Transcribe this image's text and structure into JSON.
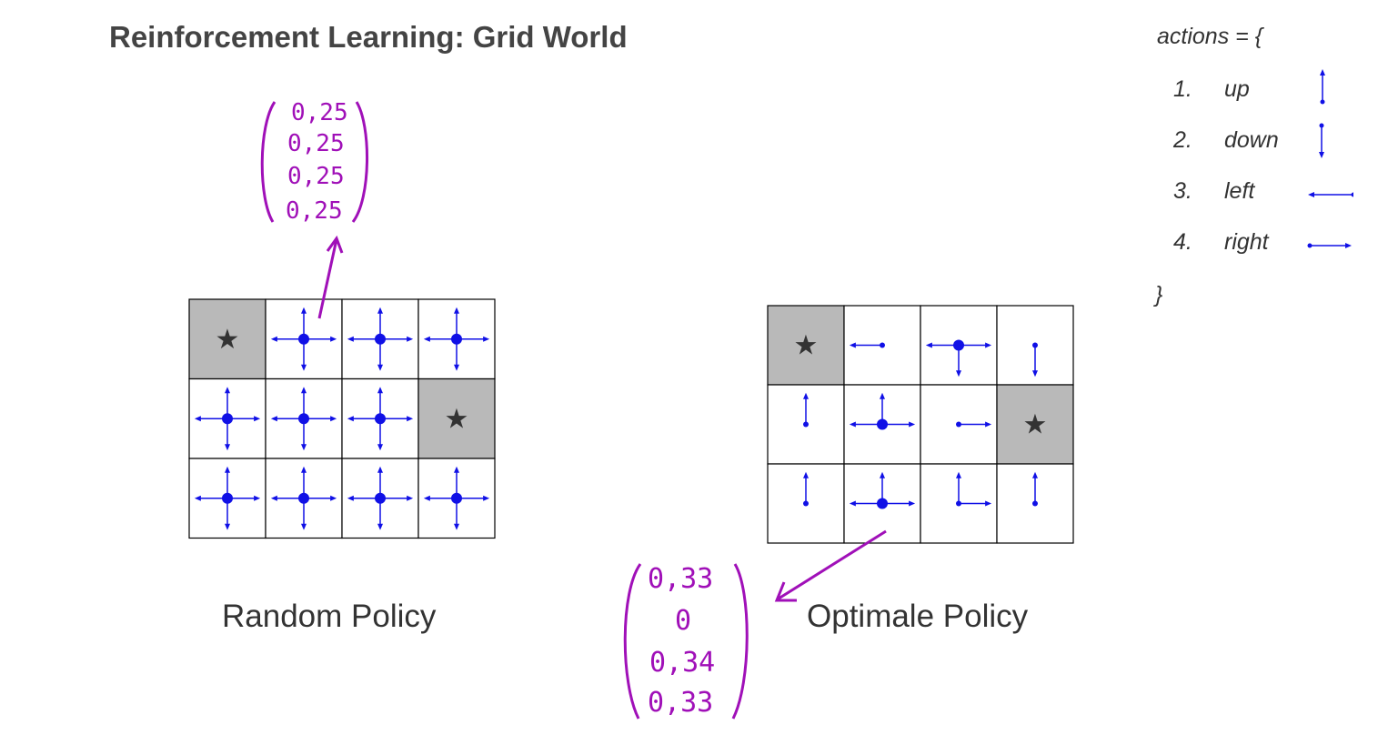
{
  "title": "Reinforcement Learning: Grid World",
  "colors": {
    "arrow": "#1010e6",
    "annotation": "#a010b8",
    "goal_cell": "#b9b9b9",
    "star": "#333333"
  },
  "legend": {
    "header": "actions = {",
    "closing": "}",
    "actions": [
      {
        "number": "1.",
        "name": "up",
        "icon": "arrow-up-icon"
      },
      {
        "number": "2.",
        "name": "down",
        "icon": "arrow-down-icon"
      },
      {
        "number": "3.",
        "name": "left",
        "icon": "arrow-left-icon"
      },
      {
        "number": "4.",
        "name": "right",
        "icon": "arrow-right-icon"
      }
    ]
  },
  "random_policy": {
    "caption": "Random Policy",
    "cells": [
      [
        {
          "goal": true,
          "symbol": "★",
          "actions": []
        },
        {
          "actions": [
            "up",
            "down",
            "left",
            "right"
          ]
        },
        {
          "actions": [
            "up",
            "down",
            "left",
            "right"
          ]
        },
        {
          "actions": [
            "up",
            "down",
            "left",
            "right"
          ]
        }
      ],
      [
        {
          "actions": [
            "up",
            "down",
            "left",
            "right"
          ]
        },
        {
          "actions": [
            "up",
            "down",
            "left",
            "right"
          ]
        },
        {
          "actions": [
            "up",
            "down",
            "left",
            "right"
          ]
        },
        {
          "goal": true,
          "symbol": "★",
          "actions": []
        }
      ],
      [
        {
          "actions": [
            "up",
            "down",
            "left",
            "right"
          ]
        },
        {
          "actions": [
            "up",
            "down",
            "left",
            "right"
          ]
        },
        {
          "actions": [
            "up",
            "down",
            "left",
            "right"
          ]
        },
        {
          "actions": [
            "up",
            "down",
            "left",
            "right"
          ]
        }
      ]
    ],
    "annotation": {
      "values": [
        "0,25",
        "0,25",
        "0,25",
        "0,25"
      ]
    }
  },
  "optimal_policy": {
    "caption": "Optimale Policy",
    "cells": [
      [
        {
          "goal": true,
          "symbol": "★",
          "actions": []
        },
        {
          "actions": [
            "left"
          ]
        },
        {
          "actions": [
            "down",
            "left",
            "right"
          ]
        },
        {
          "actions": [
            "down"
          ]
        }
      ],
      [
        {
          "actions": [
            "up"
          ]
        },
        {
          "actions": [
            "up",
            "left",
            "right"
          ]
        },
        {
          "actions": [
            "right"
          ]
        },
        {
          "goal": true,
          "symbol": "★",
          "actions": []
        }
      ],
      [
        {
          "actions": [
            "up"
          ]
        },
        {
          "actions": [
            "up",
            "left",
            "right"
          ]
        },
        {
          "actions": [
            "up",
            "right"
          ]
        },
        {
          "actions": [
            "up"
          ]
        }
      ]
    ],
    "annotation": {
      "values": [
        "0,33",
        "0",
        "0,34",
        "0,33"
      ]
    }
  }
}
